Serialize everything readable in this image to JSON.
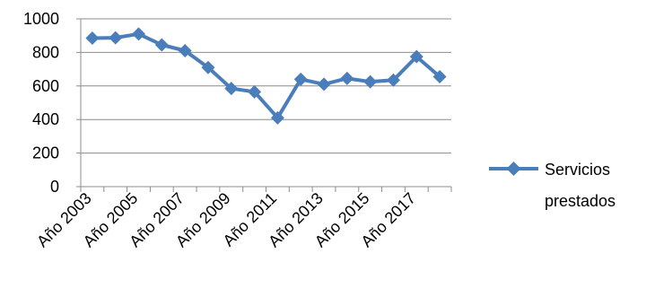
{
  "chart_data": {
    "type": "line",
    "title": "",
    "xlabel": "",
    "ylabel": "",
    "ylim": [
      0,
      1000
    ],
    "yticks": [
      0,
      200,
      400,
      600,
      800,
      1000
    ],
    "grid": "horizontal",
    "legend_position": "right",
    "x": [
      "Año 2003",
      "Año 2004",
      "Año 2005",
      "Año 2006",
      "Año 2007",
      "Año 2008",
      "Año 2009",
      "Año 2010",
      "Año 2011",
      "Año 2012",
      "Año 2013",
      "Año 2014",
      "Año 2015",
      "Año 2016",
      "Año 2017",
      "Año 2018"
    ],
    "x_tick_labels_shown": [
      "Año 2003",
      "Año 2005",
      "Año 2007",
      "Año 2009",
      "Año 2011",
      "Año 2013",
      "Año 2015",
      "Año 2017"
    ],
    "series": [
      {
        "name": "Servicios prestados",
        "color": "#4a7ebb",
        "marker": "diamond",
        "values": [
          885,
          887,
          910,
          845,
          810,
          710,
          585,
          565,
          410,
          640,
          610,
          645,
          625,
          635,
          775,
          655
        ]
      }
    ]
  },
  "legend": {
    "line1": "Servicios",
    "line2": "prestados"
  }
}
